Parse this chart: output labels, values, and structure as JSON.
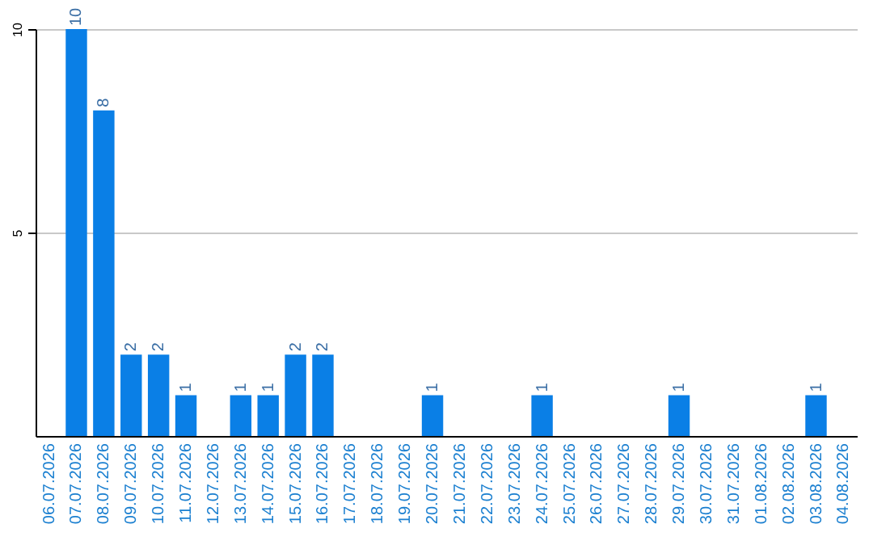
{
  "chart_data": {
    "type": "bar",
    "categories": [
      "06.07.2026",
      "07.07.2026",
      "08.07.2026",
      "09.07.2026",
      "10.07.2026",
      "11.07.2026",
      "12.07.2026",
      "13.07.2026",
      "14.07.2026",
      "15.07.2026",
      "16.07.2026",
      "17.07.2026",
      "18.07.2026",
      "19.07.2026",
      "20.07.2026",
      "21.07.2026",
      "22.07.2026",
      "23.07.2026",
      "24.07.2026",
      "25.07.2026",
      "26.07.2026",
      "27.07.2026",
      "28.07.2026",
      "29.07.2026",
      "30.07.2026",
      "31.07.2026",
      "01.08.2026",
      "02.08.2026",
      "03.08.2026",
      "04.08.2026"
    ],
    "values": [
      0,
      10,
      8,
      2,
      2,
      1,
      0,
      1,
      1,
      2,
      2,
      0,
      0,
      0,
      1,
      0,
      0,
      0,
      1,
      0,
      0,
      0,
      0,
      1,
      0,
      0,
      0,
      0,
      1,
      0
    ],
    "value_labels": [
      null,
      "10",
      "8",
      "2",
      "2",
      "1",
      null,
      "1",
      "1",
      "2",
      "2",
      null,
      null,
      null,
      "1",
      null,
      null,
      null,
      "1",
      null,
      null,
      null,
      null,
      "1",
      null,
      null,
      null,
      null,
      "1",
      null
    ],
    "color": "#0a7fe6",
    "ylim": [
      0,
      10
    ],
    "yticks": [
      5,
      10
    ],
    "grid": "y"
  }
}
